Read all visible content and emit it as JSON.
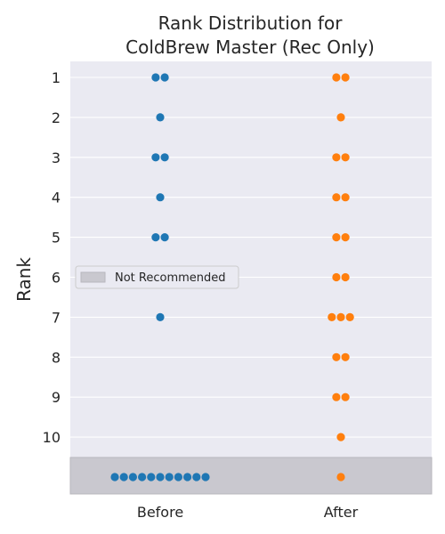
{
  "chart_data": {
    "type": "scatter",
    "subtype": "swarm",
    "title_lines": [
      "Rank Distribution for",
      "ColdBrew Master (Rec Only)"
    ],
    "xlabel": "",
    "ylabel": "Rank",
    "categories": [
      "Before",
      "After"
    ],
    "y_ticks": [
      1,
      2,
      3,
      4,
      5,
      6,
      7,
      8,
      9,
      10
    ],
    "y_ticks_inverted": true,
    "not_recommended_value": 11,
    "grid": true,
    "legend": {
      "position": "center-left",
      "entries": [
        "Not Recommended"
      ]
    },
    "colors": {
      "Before": "#1f77b4",
      "After": "#ff7f0e",
      "not_recommended_band": "#c9c8cf",
      "plot_bg": "#eaeaf2"
    },
    "series": [
      {
        "category": "Before",
        "ranks": [
          1,
          1,
          2,
          3,
          3,
          4,
          5,
          5,
          7,
          11,
          11,
          11,
          11,
          11,
          11,
          11,
          11,
          11,
          11,
          11
        ]
      },
      {
        "category": "After",
        "ranks": [
          1,
          1,
          2,
          3,
          3,
          4,
          4,
          5,
          5,
          6,
          6,
          7,
          7,
          7,
          8,
          8,
          9,
          9,
          10,
          11
        ]
      }
    ]
  }
}
